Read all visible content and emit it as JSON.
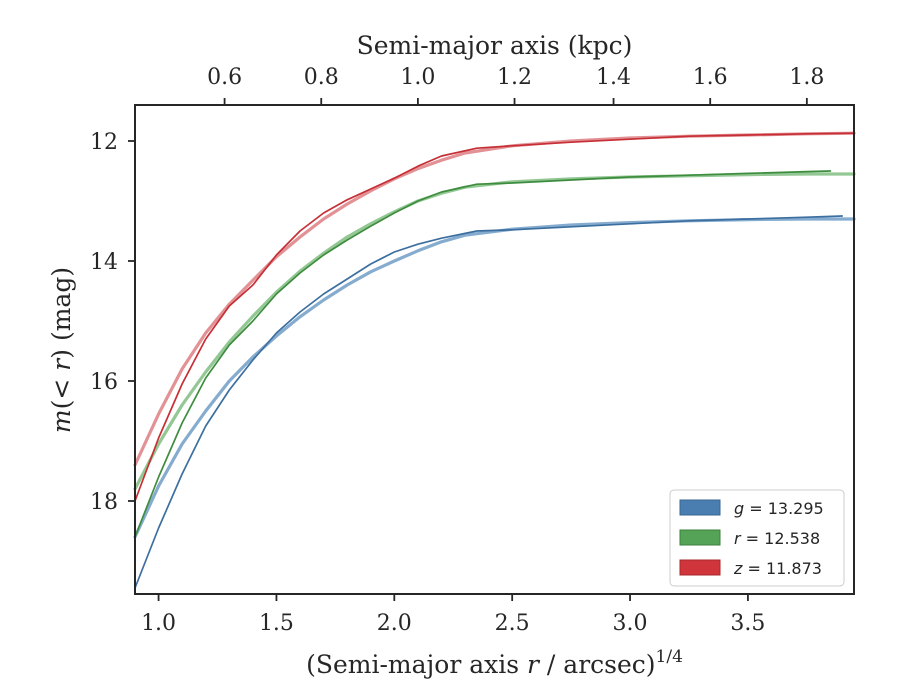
{
  "chart_data": {
    "type": "line",
    "title": "",
    "xlabel": "(Semi-major axis r / arcsec)^1/4",
    "xlabel_parts": [
      "(Semi-major axis ",
      "r",
      " / arcsec)",
      "1/4"
    ],
    "ylabel": "m(< r) (mag)",
    "ylabel_parts": [
      "m",
      "(< ",
      "r",
      ") (mag)"
    ],
    "top_xlabel": "Semi-major axis (kpc)",
    "xlim": [
      0.9,
      3.95
    ],
    "ylim": [
      19.55,
      11.4
    ],
    "y_inverted": true,
    "x_ticks": [
      1.0,
      1.5,
      2.0,
      2.5,
      3.0,
      3.5
    ],
    "x_tick_labels": [
      "1.0",
      "1.5",
      "2.0",
      "2.5",
      "3.0",
      "3.5"
    ],
    "y_ticks": [
      12,
      14,
      16,
      18
    ],
    "y_tick_labels": [
      "12",
      "14",
      "16",
      "18"
    ],
    "top_ticks": [
      0.6,
      0.8,
      1.0,
      1.2,
      1.4,
      1.6,
      1.8
    ],
    "top_tick_labels": [
      "0.6",
      "0.8",
      "1.0",
      "1.2",
      "1.4",
      "1.6",
      "1.8"
    ],
    "top_tick_positions_x": [
      1.28,
      1.69,
      2.1,
      2.51,
      2.93,
      3.34,
      3.75
    ],
    "grid": false,
    "legend_position": "lower-right",
    "legend": [
      {
        "label": "g = 13.295",
        "var": "g",
        "value": "13.295",
        "color": "#4a7eb0"
      },
      {
        "label": "r = 12.538",
        "var": "r",
        "value": "12.538",
        "color": "#55a357"
      },
      {
        "label": "z = 11.873",
        "var": "z",
        "value": "11.873",
        "color": "#d0353b"
      }
    ],
    "series": [
      {
        "name": "g",
        "kind": "data",
        "color": "#3c6f9f",
        "x": [
          0.9,
          1.0,
          1.1,
          1.2,
          1.3,
          1.4,
          1.5,
          1.6,
          1.7,
          1.8,
          1.9,
          2.0,
          2.1,
          2.2,
          2.35,
          2.5,
          2.75,
          3.0,
          3.25,
          3.5,
          3.75,
          3.9
        ],
        "y": [
          19.45,
          18.45,
          17.55,
          16.75,
          16.15,
          15.65,
          15.2,
          14.85,
          14.55,
          14.3,
          14.05,
          13.85,
          13.72,
          13.62,
          13.5,
          13.48,
          13.43,
          13.38,
          13.33,
          13.3,
          13.27,
          13.25
        ]
      },
      {
        "name": "g model",
        "kind": "model",
        "color": "#7ea7cc",
        "x": [
          0.9,
          1.0,
          1.1,
          1.2,
          1.3,
          1.4,
          1.5,
          1.6,
          1.7,
          1.8,
          1.9,
          2.0,
          2.1,
          2.2,
          2.3,
          2.5,
          2.75,
          3.0,
          3.25,
          3.5,
          3.75,
          3.95
        ],
        "y": [
          18.6,
          17.75,
          17.05,
          16.5,
          16.0,
          15.6,
          15.25,
          14.93,
          14.65,
          14.4,
          14.18,
          14.0,
          13.83,
          13.68,
          13.57,
          13.47,
          13.4,
          13.36,
          13.33,
          13.31,
          13.3,
          13.3
        ]
      },
      {
        "name": "r",
        "kind": "data",
        "color": "#3e8d3f",
        "x": [
          0.9,
          1.0,
          1.1,
          1.2,
          1.3,
          1.4,
          1.5,
          1.6,
          1.7,
          1.8,
          1.9,
          2.0,
          2.1,
          2.2,
          2.35,
          2.5,
          2.75,
          3.0,
          3.25,
          3.5,
          3.75,
          3.85
        ],
        "y": [
          18.6,
          17.6,
          16.7,
          15.95,
          15.4,
          15.0,
          14.55,
          14.2,
          13.9,
          13.65,
          13.42,
          13.2,
          13.0,
          12.85,
          12.72,
          12.7,
          12.65,
          12.6,
          12.57,
          12.54,
          12.51,
          12.5
        ]
      },
      {
        "name": "r model",
        "kind": "model",
        "color": "#8dc48e",
        "x": [
          0.9,
          1.0,
          1.1,
          1.2,
          1.3,
          1.4,
          1.5,
          1.6,
          1.7,
          1.8,
          1.9,
          2.0,
          2.1,
          2.2,
          2.3,
          2.5,
          2.75,
          3.0,
          3.25,
          3.5,
          3.75,
          3.95
        ],
        "y": [
          17.8,
          17.05,
          16.4,
          15.85,
          15.35,
          14.92,
          14.52,
          14.17,
          13.87,
          13.6,
          13.38,
          13.18,
          13.0,
          12.87,
          12.77,
          12.68,
          12.63,
          12.6,
          12.58,
          12.56,
          12.55,
          12.55
        ]
      },
      {
        "name": "z",
        "kind": "data",
        "color": "#c62f35",
        "x": [
          0.9,
          1.0,
          1.1,
          1.2,
          1.3,
          1.4,
          1.5,
          1.6,
          1.7,
          1.8,
          1.9,
          2.0,
          2.1,
          2.2,
          2.35,
          2.5,
          2.75,
          3.0,
          3.25,
          3.5,
          3.75,
          3.95
        ],
        "y": [
          18.0,
          16.95,
          16.05,
          15.3,
          14.75,
          14.4,
          13.9,
          13.5,
          13.2,
          12.98,
          12.8,
          12.62,
          12.42,
          12.25,
          12.12,
          12.08,
          12.02,
          11.97,
          11.92,
          11.9,
          11.88,
          11.87
        ]
      },
      {
        "name": "z model",
        "kind": "model",
        "color": "#e08b8f",
        "x": [
          0.9,
          1.0,
          1.1,
          1.2,
          1.3,
          1.4,
          1.5,
          1.6,
          1.7,
          1.8,
          1.9,
          2.0,
          2.1,
          2.2,
          2.3,
          2.5,
          2.75,
          3.0,
          3.25,
          3.5,
          3.75,
          3.95
        ],
        "y": [
          17.4,
          16.55,
          15.8,
          15.2,
          14.72,
          14.32,
          13.93,
          13.6,
          13.3,
          13.05,
          12.83,
          12.63,
          12.46,
          12.32,
          12.2,
          12.08,
          12.0,
          11.95,
          11.92,
          11.9,
          11.88,
          11.87
        ]
      }
    ]
  }
}
